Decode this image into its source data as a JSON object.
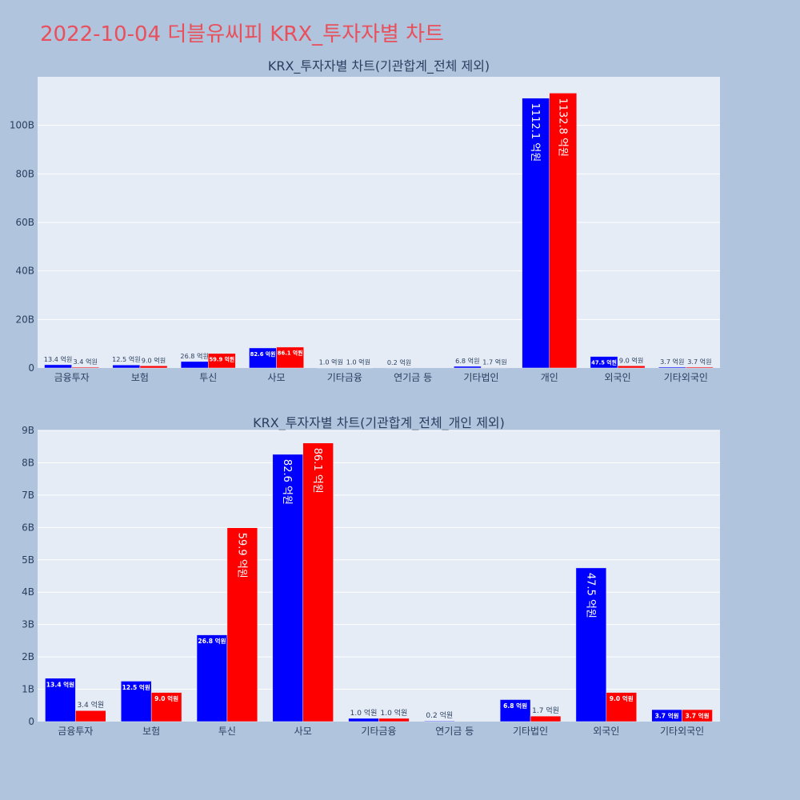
{
  "page": {
    "title": "2022-10-04 더블유씨피 KRX_투자자별 차트"
  },
  "colors": {
    "series_a": "#0000ff",
    "series_b": "#ff0000",
    "title": "#e8505b",
    "page_background": "#b0c4de",
    "plot_background": "#e5ecf6"
  },
  "chart_data": [
    {
      "type": "bar",
      "title": "KRX_투자자별 차트(기관합계_전체 제외)",
      "xlabel": "",
      "ylabel": "",
      "grid": true,
      "legend": "none",
      "categories": [
        "금융투자",
        "보험",
        "투신",
        "사모",
        "기타금융",
        "연기금 등",
        "기타법인",
        "개인",
        "외국인",
        "기타외국인"
      ],
      "ylim": [
        0,
        120000000000
      ],
      "yticks": [
        0,
        20000000000,
        40000000000,
        60000000000,
        80000000000,
        100000000000
      ],
      "ytick_labels": [
        "0",
        "20B",
        "40B",
        "60B",
        "80B",
        "100B"
      ],
      "series": [
        {
          "color": "#0000ff",
          "values": [
            1340000000,
            1250000000,
            2680000000,
            8260000000,
            100000000,
            20000000,
            680000000,
            111210000000,
            4750000000,
            370000000
          ],
          "labels": [
            "13.4 억원",
            "12.5 억원",
            "26.8 억원",
            "82.6 억원",
            "1.0 억원",
            "0.2 억원",
            "6.8 억원",
            "1112.1 억원",
            "47.5 억원",
            "3.7 억원"
          ]
        },
        {
          "color": "#ff0000",
          "values": [
            340000000,
            900000000,
            5990000000,
            8610000000,
            100000000,
            0,
            170000000,
            113280000000,
            900000000,
            370000000
          ],
          "labels": [
            "3.4 억원",
            "9.0 억원",
            "59.9 억원",
            "86.1 억원",
            "1.0 억원",
            "",
            "1.7 억원",
            "1132.8 억원",
            "9.0 억원",
            "3.7 억원"
          ]
        }
      ]
    },
    {
      "type": "bar",
      "title": "KRX_투자자별 차트(기관합계_전체_개인 제외)",
      "xlabel": "",
      "ylabel": "",
      "grid": true,
      "legend": "none",
      "categories": [
        "금융투자",
        "보험",
        "투신",
        "사모",
        "기타금융",
        "연기금 등",
        "기타법인",
        "외국인",
        "기타외국인"
      ],
      "ylim": [
        0,
        9000000000
      ],
      "yticks": [
        0,
        1000000000,
        2000000000,
        3000000000,
        4000000000,
        5000000000,
        6000000000,
        7000000000,
        8000000000,
        9000000000
      ],
      "ytick_labels": [
        "0",
        "1B",
        "2B",
        "3B",
        "4B",
        "5B",
        "6B",
        "7B",
        "8B",
        "9B"
      ],
      "series": [
        {
          "color": "#0000ff",
          "values": [
            1340000000,
            1250000000,
            2680000000,
            8260000000,
            100000000,
            20000000,
            680000000,
            4750000000,
            370000000
          ],
          "labels": [
            "13.4 억원",
            "12.5 억원",
            "26.8 억원",
            "82.6 억원",
            "1.0 억원",
            "0.2 억원",
            "6.8 억원",
            "47.5 억원",
            "3.7 억원"
          ]
        },
        {
          "color": "#ff0000",
          "values": [
            340000000,
            900000000,
            5990000000,
            8610000000,
            100000000,
            0,
            170000000,
            900000000,
            370000000
          ],
          "labels": [
            "3.4 억원",
            "9.0 억원",
            "59.9 억원",
            "86.1 억원",
            "1.0 억원",
            "",
            "1.7 억원",
            "9.0 억원",
            "3.7 억원"
          ]
        }
      ]
    }
  ]
}
